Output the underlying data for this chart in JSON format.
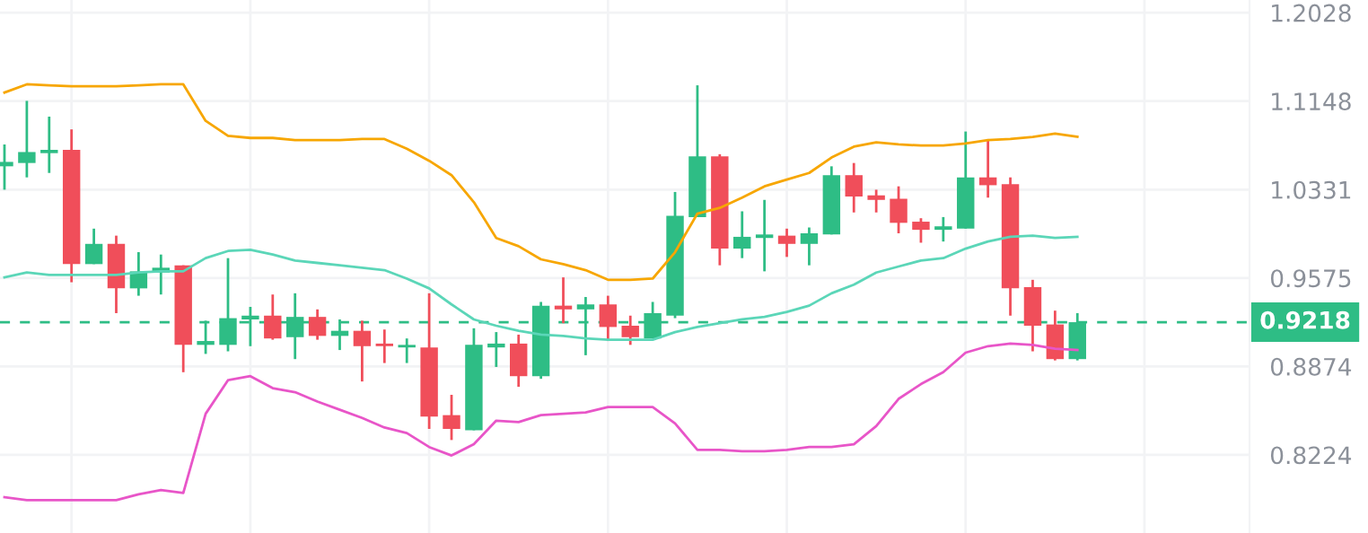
{
  "chart_data": {
    "type": "candlestick",
    "categories": [
      null,
      null,
      null,
      null,
      null,
      null,
      null,
      null,
      null,
      null,
      null,
      null,
      null,
      null,
      null,
      null,
      null,
      null,
      null,
      null,
      null,
      null,
      null,
      null,
      null,
      null,
      null,
      null,
      null,
      null,
      null,
      null,
      null,
      null,
      null,
      null,
      null,
      null,
      null,
      null,
      null,
      null,
      null,
      null,
      null,
      null,
      null,
      null,
      null
    ],
    "ohlc": [
      [
        1.054,
        1.074,
        1.033,
        1.058
      ],
      [
        1.057,
        1.115,
        1.044,
        1.067
      ],
      [
        1.066,
        1.1,
        1.048,
        1.069
      ],
      [
        1.069,
        1.088,
        0.954,
        0.969
      ],
      [
        0.969,
        0.999,
        0.969,
        0.986
      ],
      [
        0.986,
        0.993,
        0.929,
        0.949
      ],
      [
        0.949,
        0.979,
        0.943,
        0.963
      ],
      [
        0.962,
        0.977,
        0.944,
        0.966
      ],
      [
        0.968,
        0.968,
        0.883,
        0.904
      ],
      [
        0.904,
        0.923,
        0.897,
        0.907
      ],
      [
        0.904,
        0.974,
        0.899,
        0.925
      ],
      [
        0.924,
        0.934,
        0.903,
        0.927
      ],
      [
        0.927,
        0.944,
        0.908,
        0.909
      ],
      [
        0.91,
        0.945,
        0.893,
        0.926
      ],
      [
        0.926,
        0.932,
        0.908,
        0.911
      ],
      [
        0.911,
        0.924,
        0.9,
        0.915
      ],
      [
        0.915,
        0.923,
        0.876,
        0.903
      ],
      [
        0.905,
        0.916,
        0.89,
        0.903
      ],
      [
        0.902,
        0.909,
        0.89,
        0.904
      ],
      [
        0.902,
        0.945,
        0.841,
        0.85
      ],
      [
        0.851,
        0.866,
        0.833,
        0.841
      ],
      [
        0.84,
        0.917,
        0.84,
        0.904
      ],
      [
        0.902,
        0.914,
        0.887,
        0.905
      ],
      [
        0.905,
        0.912,
        0.872,
        0.88
      ],
      [
        0.88,
        0.938,
        0.878,
        0.935
      ],
      [
        0.935,
        0.958,
        0.921,
        0.932
      ],
      [
        0.932,
        0.942,
        0.896,
        0.936
      ],
      [
        0.936,
        0.943,
        0.907,
        0.918
      ],
      [
        0.919,
        0.927,
        0.904,
        0.91
      ],
      [
        0.909,
        0.938,
        0.909,
        0.929
      ],
      [
        0.927,
        1.031,
        0.925,
        1.01
      ],
      [
        1.009,
        1.13,
        1.009,
        1.063
      ],
      [
        1.063,
        1.065,
        0.968,
        0.982
      ],
      [
        0.982,
        1.014,
        0.974,
        0.992
      ],
      [
        0.991,
        1.024,
        0.963,
        0.994
      ],
      [
        0.993,
        0.999,
        0.975,
        0.986
      ],
      [
        0.986,
        1.0,
        0.968,
        0.995
      ],
      [
        0.994,
        1.054,
        0.994,
        1.046
      ],
      [
        1.046,
        1.057,
        1.013,
        1.027
      ],
      [
        1.028,
        1.033,
        1.013,
        1.024
      ],
      [
        1.025,
        1.036,
        0.995,
        1.004
      ],
      [
        1.005,
        1.008,
        0.987,
        0.998
      ],
      [
        0.998,
        1.009,
        0.988,
        1.001
      ],
      [
        0.999,
        1.086,
        0.999,
        1.044
      ],
      [
        1.044,
        1.079,
        1.026,
        1.037
      ],
      [
        1.038,
        1.044,
        0.927,
        0.949
      ],
      [
        0.95,
        0.956,
        0.899,
        0.919
      ],
      [
        0.92,
        0.931,
        0.892,
        0.893
      ],
      [
        0.893,
        0.929,
        0.892,
        0.9218
      ]
    ],
    "colors": [
      "#2ebd85",
      "#2ebd85",
      "#2ebd85",
      "#f04e5a",
      "#2ebd85",
      "#f04e5a",
      "#2ebd85",
      "#2ebd85",
      "#f04e5a",
      "#2ebd85",
      "#2ebd85",
      "#2ebd85",
      "#f04e5a",
      "#2ebd85",
      "#f04e5a",
      "#2ebd85",
      "#f04e5a",
      "#f04e5a",
      "#2ebd85",
      "#f04e5a",
      "#f04e5a",
      "#2ebd85",
      "#2ebd85",
      "#f04e5a",
      "#2ebd85",
      "#f04e5a",
      "#2ebd85",
      "#f04e5a",
      "#f04e5a",
      "#2ebd85",
      "#2ebd85",
      "#2ebd85",
      "#f04e5a",
      "#2ebd85",
      "#2ebd85",
      "#f04e5a",
      "#2ebd85",
      "#2ebd85",
      "#f04e5a",
      "#f04e5a",
      "#f04e5a",
      "#f04e5a",
      "#2ebd85",
      "#2ebd85",
      "#f04e5a",
      "#f04e5a",
      "#f04e5a",
      "#f04e5a",
      "#2ebd85"
    ],
    "series": [
      {
        "type": "line",
        "color": "#f7a600",
        "values": [
          1.123,
          1.131,
          1.13,
          1.129,
          1.129,
          1.129,
          1.13,
          1.131,
          1.131,
          1.096,
          1.082,
          1.08,
          1.08,
          1.078,
          1.078,
          1.078,
          1.079,
          1.079,
          1.07,
          1.059,
          1.046,
          1.022,
          0.991,
          0.984,
          0.973,
          0.969,
          0.964,
          0.956,
          0.956,
          0.957,
          0.979,
          1.012,
          1.017,
          1.026,
          1.036,
          1.042,
          1.048,
          1.062,
          1.072,
          1.076,
          1.074,
          1.073,
          1.073,
          1.075,
          1.078,
          1.079,
          1.081,
          1.084,
          1.081
        ]
      },
      {
        "type": "line",
        "color": "#5bd6b8",
        "values": [
          0.958,
          0.962,
          0.96,
          0.96,
          0.96,
          0.96,
          0.962,
          0.963,
          0.963,
          0.974,
          0.98,
          0.981,
          0.977,
          0.972,
          0.97,
          0.968,
          0.966,
          0.964,
          0.957,
          0.949,
          0.936,
          0.924,
          0.919,
          0.915,
          0.912,
          0.911,
          0.909,
          0.908,
          0.908,
          0.908,
          0.914,
          0.918,
          0.921,
          0.924,
          0.926,
          0.93,
          0.935,
          0.945,
          0.952,
          0.962,
          0.967,
          0.972,
          0.974,
          0.982,
          0.988,
          0.992,
          0.993,
          0.991,
          0.992
        ]
      },
      {
        "type": "line",
        "color": "#e855c8",
        "values": [
          0.793,
          0.791,
          0.791,
          0.791,
          0.791,
          0.791,
          0.795,
          0.798,
          0.796,
          0.852,
          0.877,
          0.88,
          0.871,
          0.868,
          0.861,
          0.855,
          0.849,
          0.842,
          0.838,
          0.828,
          0.822,
          0.83,
          0.847,
          0.846,
          0.851,
          0.852,
          0.853,
          0.857,
          0.857,
          0.857,
          0.845,
          0.826,
          0.826,
          0.825,
          0.825,
          0.826,
          0.828,
          0.828,
          0.83,
          0.843,
          0.863,
          0.874,
          0.883,
          0.898,
          0.903,
          0.905,
          0.904,
          0.901,
          0.9
        ]
      }
    ],
    "log": true,
    "ylim": [
      0.769,
      1.216
    ],
    "yticks": [
      0.8224,
      0.8874,
      0.9575,
      1.0331,
      1.1148,
      1.2028
    ],
    "grid": true,
    "ref_lines": [
      {
        "axis": "y",
        "value": 0.9218,
        "label": "0.9218",
        "color": "#2ebd85",
        "line_style": "dashed"
      }
    ]
  }
}
